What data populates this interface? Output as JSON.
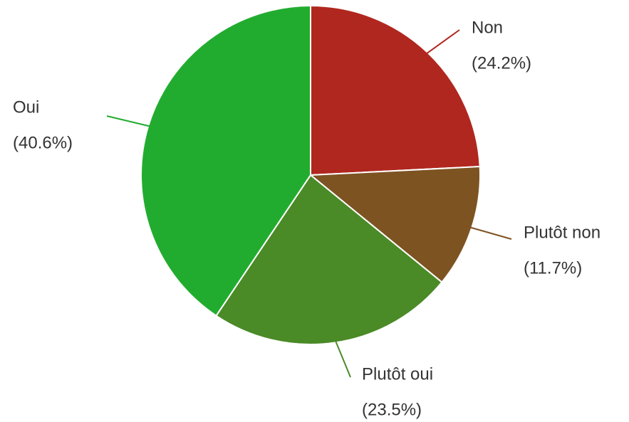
{
  "chart_data": {
    "type": "pie",
    "categories": [
      "Non",
      "Plutôt non",
      "Plutôt oui",
      "Oui"
    ],
    "values": [
      24.2,
      11.7,
      23.5,
      40.6
    ],
    "value_labels": [
      "(24.2%)",
      "(11.7%)",
      "(23.5%)",
      "(40.6%)"
    ],
    "colors": [
      "#b0271f",
      "#7d5322",
      "#4a8a27",
      "#22ac2f"
    ]
  }
}
